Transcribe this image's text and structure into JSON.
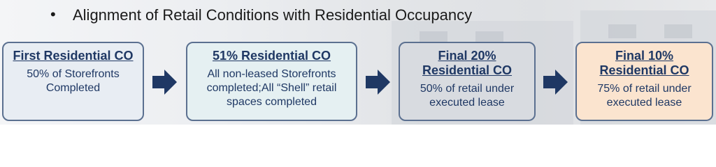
{
  "header": {
    "bullet": "•",
    "title": "Alignment of Retail Conditions with Residential Occupancy"
  },
  "steps": [
    {
      "title": "First Residential CO",
      "description": "50% of Storefronts Completed"
    },
    {
      "title": "51% Residential CO",
      "description": "All non-leased Storefronts completed;All “Shell” retail spaces completed"
    },
    {
      "title": "Final 20% Residential CO",
      "description": "50% of retail under executed lease"
    },
    {
      "title": "Final 10% Residential CO",
      "description": "75% of retail under executed lease"
    }
  ]
}
